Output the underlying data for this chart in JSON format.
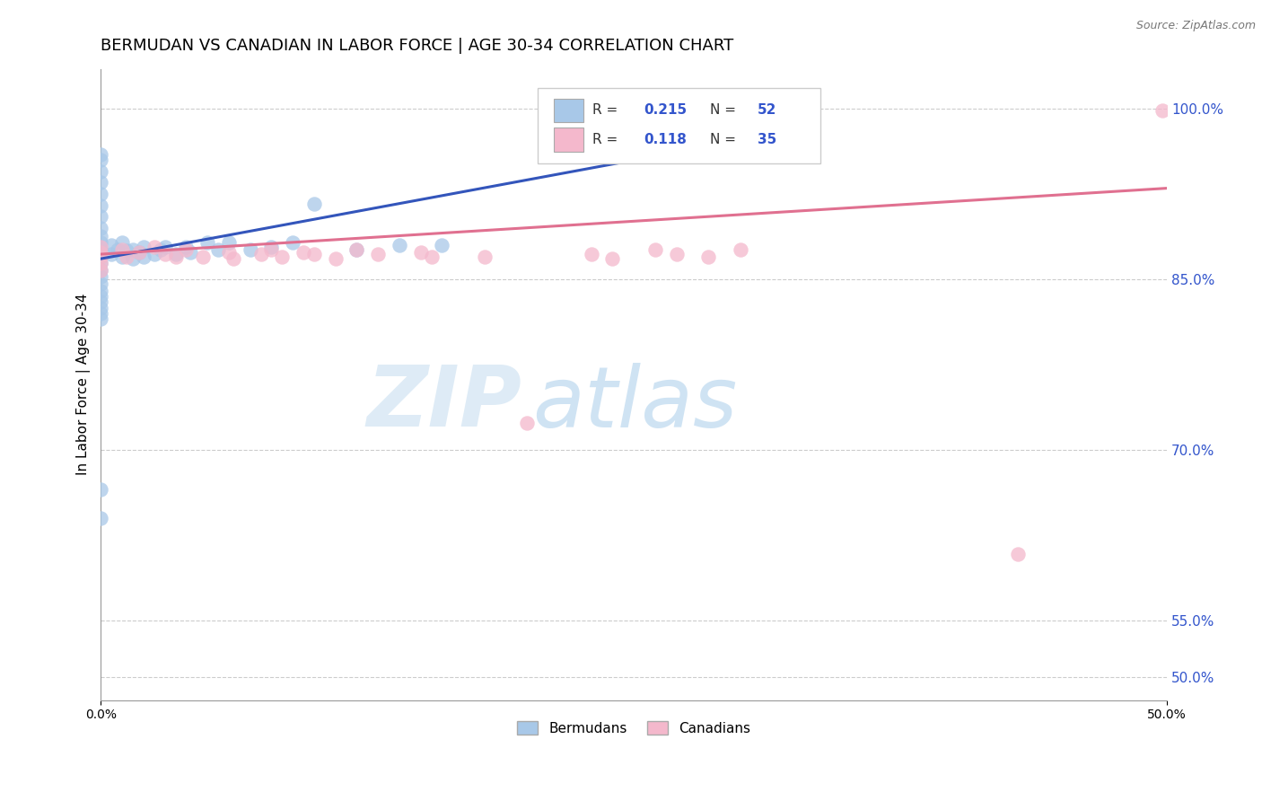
{
  "title": "BERMUDAN VS CANADIAN IN LABOR FORCE | AGE 30-34 CORRELATION CHART",
  "source_text": "Source: ZipAtlas.com",
  "ylabel": "In Labor Force | Age 30-34",
  "xlim": [
    0.0,
    0.5
  ],
  "ylim": [
    0.48,
    1.035
  ],
  "ytick_labels": [
    "50.0%",
    "55.0%",
    "70.0%",
    "85.0%",
    "100.0%"
  ],
  "ytick_positions": [
    0.5,
    0.55,
    0.7,
    0.85,
    1.0
  ],
  "color_blue": "#a8c8e8",
  "color_pink": "#f4b8cc",
  "line_blue": "#3355bb",
  "line_pink": "#e07090",
  "watermark_zip": "ZIP",
  "watermark_atlas": "atlas",
  "title_fontsize": 13,
  "axis_fontsize": 11,
  "tick_fontsize": 10,
  "bermudans_x": [
    0.0,
    0.0,
    0.0,
    0.0,
    0.0,
    0.0,
    0.0,
    0.0,
    0.0,
    0.0,
    0.0,
    0.0,
    0.0,
    0.0,
    0.0,
    0.0,
    0.0,
    0.0,
    0.0,
    0.0,
    0.0,
    0.0,
    0.0,
    0.0,
    0.005,
    0.005,
    0.008,
    0.01,
    0.01,
    0.012,
    0.015,
    0.015,
    0.018,
    0.02,
    0.02,
    0.025,
    0.028,
    0.03,
    0.035,
    0.04,
    0.042,
    0.05,
    0.055,
    0.06,
    0.07,
    0.08,
    0.09,
    0.1,
    0.12,
    0.14,
    0.16,
    0.3
  ],
  "bermudans_y": [
    0.96,
    0.955,
    0.945,
    0.935,
    0.925,
    0.915,
    0.905,
    0.895,
    0.888,
    0.882,
    0.876,
    0.87,
    0.864,
    0.858,
    0.852,
    0.846,
    0.84,
    0.835,
    0.83,
    0.825,
    0.82,
    0.815,
    0.665,
    0.64,
    0.88,
    0.872,
    0.876,
    0.882,
    0.87,
    0.875,
    0.876,
    0.868,
    0.874,
    0.878,
    0.87,
    0.872,
    0.876,
    0.878,
    0.872,
    0.878,
    0.874,
    0.882,
    0.876,
    0.882,
    0.876,
    0.878,
    0.882,
    0.916,
    0.876,
    0.88,
    0.88,
    0.968
  ],
  "canadians_x": [
    0.0,
    0.0,
    0.0,
    0.0,
    0.0,
    0.01,
    0.012,
    0.018,
    0.025,
    0.03,
    0.035,
    0.04,
    0.048,
    0.06,
    0.062,
    0.075,
    0.08,
    0.085,
    0.095,
    0.1,
    0.11,
    0.12,
    0.13,
    0.15,
    0.155,
    0.18,
    0.2,
    0.23,
    0.24,
    0.26,
    0.27,
    0.285,
    0.3,
    0.43,
    0.498
  ],
  "canadians_y": [
    0.878,
    0.874,
    0.87,
    0.864,
    0.858,
    0.876,
    0.87,
    0.874,
    0.878,
    0.872,
    0.87,
    0.876,
    0.87,
    0.874,
    0.868,
    0.872,
    0.876,
    0.87,
    0.874,
    0.872,
    0.868,
    0.876,
    0.872,
    0.874,
    0.87,
    0.87,
    0.724,
    0.872,
    0.868,
    0.876,
    0.872,
    0.87,
    0.876,
    0.608,
    0.998
  ],
  "blue_line_x0": 0.0,
  "blue_line_y0": 0.868,
  "blue_line_x1": 0.3,
  "blue_line_y1": 0.972,
  "pink_line_x0": 0.0,
  "pink_line_y0": 0.872,
  "pink_line_x1": 0.5,
  "pink_line_y1": 0.93
}
